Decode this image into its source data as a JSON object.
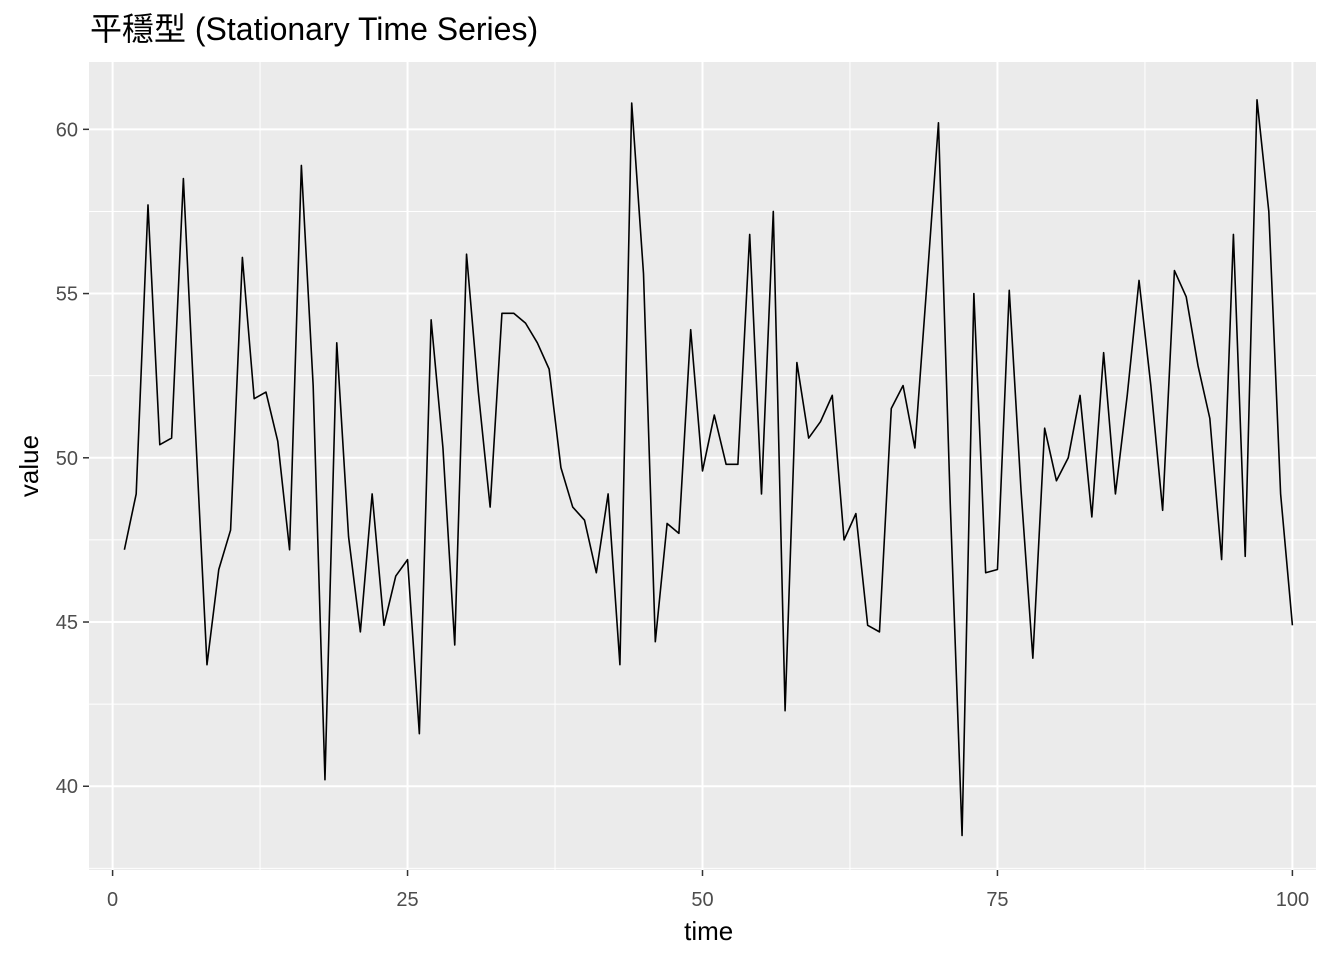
{
  "chart_data": {
    "type": "line",
    "title": "平穩型 (Stationary Time Series)",
    "xlabel": "time",
    "ylabel": "value",
    "xlim": [
      -2,
      102
    ],
    "ylim": [
      37.45,
      62.05
    ],
    "x_ticks": [
      0,
      25,
      50,
      75,
      100
    ],
    "y_ticks": [
      40,
      45,
      50,
      55,
      60
    ],
    "x_tick_labels": [
      "0",
      "25",
      "50",
      "75",
      "100"
    ],
    "y_tick_labels": [
      "40",
      "45",
      "50",
      "55",
      "60"
    ],
    "grid": true,
    "legend": "none",
    "colors": {
      "panel_background": "#ebebeb",
      "grid": "#ffffff",
      "line": "#000000",
      "tick_text": "#4d4d4d",
      "tick_mark": "#333333"
    },
    "series": [
      {
        "x": [
          1,
          2,
          3,
          4,
          5,
          6,
          7,
          8,
          9,
          10,
          11,
          12,
          13,
          14,
          15,
          16,
          17,
          18,
          19,
          20,
          21,
          22,
          23,
          24,
          25,
          26,
          27,
          28,
          29,
          30,
          31,
          32,
          33,
          34,
          35,
          36,
          37,
          38,
          39,
          40,
          41,
          42,
          43,
          44,
          45,
          46,
          47,
          48,
          49,
          50,
          51,
          52,
          53,
          54,
          55,
          56,
          57,
          58,
          59,
          60,
          61,
          62,
          63,
          64,
          65,
          66,
          67,
          68,
          69,
          70,
          71,
          72,
          73,
          74,
          75,
          76,
          77,
          78,
          79,
          80,
          81,
          82,
          83,
          84,
          85,
          86,
          87,
          88,
          89,
          90,
          91,
          92,
          93,
          94,
          95,
          96,
          97,
          98,
          99,
          100
        ],
        "values": [
          47.2,
          48.9,
          57.7,
          50.4,
          50.6,
          58.5,
          51.0,
          43.7,
          46.6,
          47.8,
          56.1,
          51.8,
          52.0,
          50.5,
          47.2,
          58.9,
          52.2,
          40.2,
          53.5,
          47.6,
          44.7,
          48.9,
          44.9,
          46.4,
          46.9,
          41.6,
          54.2,
          50.3,
          44.3,
          56.2,
          52.0,
          48.5,
          54.4,
          54.4,
          54.1,
          53.5,
          52.7,
          49.7,
          48.5,
          48.1,
          46.5,
          48.9,
          43.7,
          60.8,
          55.6,
          44.4,
          48.0,
          47.7,
          53.9,
          49.6,
          51.3,
          49.8,
          49.8,
          56.8,
          48.9,
          57.5,
          42.3,
          52.9,
          50.6,
          51.1,
          51.9,
          47.5,
          48.3,
          44.9,
          44.7,
          51.5,
          52.2,
          50.3,
          55.2,
          60.2,
          48.6,
          38.5,
          55.0,
          46.5,
          46.6,
          55.1,
          49.0,
          43.9,
          50.9,
          49.3,
          50.0,
          51.9,
          48.2,
          53.2,
          48.9,
          51.9,
          55.4,
          52.2,
          48.4,
          55.7,
          54.9,
          52.8,
          51.2,
          46.9,
          56.8,
          47.0,
          60.9,
          57.5,
          48.9,
          44.9
        ]
      }
    ]
  }
}
